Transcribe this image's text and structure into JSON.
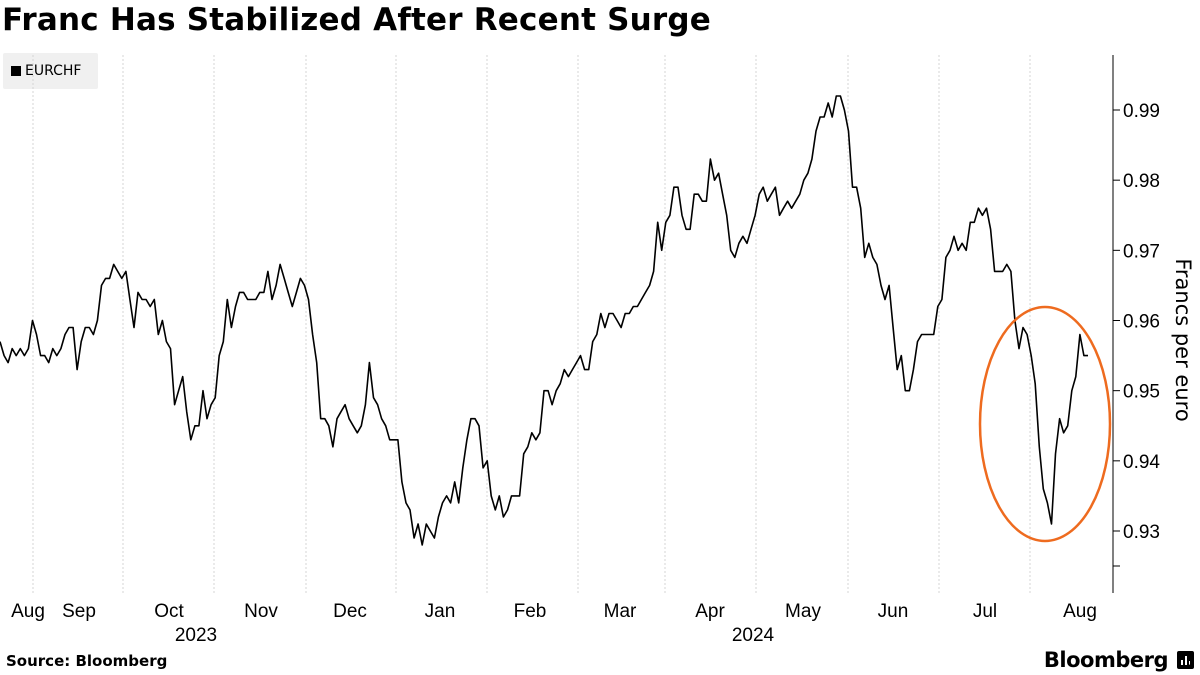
{
  "title": "Franc Has Stabilized After Recent Surge",
  "source": "Source: Bloomberg",
  "brand": "Bloomberg",
  "chart_data": {
    "type": "line",
    "ylabel": "Francs per euro",
    "ylim": [
      0.9225,
      0.9985
    ],
    "yticks": [
      "0.93",
      "0.94",
      "0.95",
      "0.96",
      "0.97",
      "0.98",
      "0.99"
    ],
    "ytick_values": [
      0.93,
      0.94,
      0.95,
      0.96,
      0.97,
      0.98,
      0.99
    ],
    "month_labels": [
      "Aug",
      "Sep",
      "Oct",
      "Nov",
      "Dec",
      "Jan",
      "Feb",
      "Mar",
      "Apr",
      "May",
      "Jun",
      "Jul",
      "Aug"
    ],
    "year_labels": [
      "2023",
      "2024"
    ],
    "grid": "vertical",
    "legend": "top-left",
    "line_color": "#000000",
    "highlight_color": "#ee6b1f",
    "series": [
      {
        "name": "EURCHF",
        "values": [
          0.957,
          0.955,
          0.954,
          0.956,
          0.955,
          0.956,
          0.955,
          0.956,
          0.96,
          0.958,
          0.955,
          0.955,
          0.954,
          0.956,
          0.955,
          0.956,
          0.958,
          0.959,
          0.959,
          0.953,
          0.957,
          0.959,
          0.959,
          0.958,
          0.96,
          0.965,
          0.966,
          0.966,
          0.968,
          0.967,
          0.966,
          0.967,
          0.963,
          0.959,
          0.964,
          0.963,
          0.963,
          0.962,
          0.963,
          0.958,
          0.96,
          0.957,
          0.956,
          0.948,
          0.95,
          0.952,
          0.947,
          0.943,
          0.945,
          0.945,
          0.95,
          0.946,
          0.948,
          0.949,
          0.955,
          0.957,
          0.963,
          0.959,
          0.962,
          0.964,
          0.964,
          0.963,
          0.963,
          0.963,
          0.964,
          0.964,
          0.967,
          0.963,
          0.965,
          0.968,
          0.966,
          0.964,
          0.962,
          0.964,
          0.966,
          0.965,
          0.963,
          0.958,
          0.954,
          0.946,
          0.946,
          0.945,
          0.942,
          0.946,
          0.947,
          0.948,
          0.946,
          0.945,
          0.944,
          0.945,
          0.948,
          0.954,
          0.949,
          0.948,
          0.946,
          0.945,
          0.943,
          0.943,
          0.943,
          0.937,
          0.934,
          0.933,
          0.929,
          0.931,
          0.928,
          0.931,
          0.93,
          0.929,
          0.932,
          0.934,
          0.935,
          0.934,
          0.937,
          0.934,
          0.939,
          0.943,
          0.946,
          0.946,
          0.945,
          0.939,
          0.94,
          0.935,
          0.933,
          0.935,
          0.932,
          0.933,
          0.935,
          0.935,
          0.935,
          0.941,
          0.942,
          0.944,
          0.943,
          0.944,
          0.95,
          0.95,
          0.948,
          0.95,
          0.951,
          0.953,
          0.952,
          0.953,
          0.954,
          0.955,
          0.953,
          0.953,
          0.957,
          0.958,
          0.961,
          0.959,
          0.961,
          0.961,
          0.96,
          0.959,
          0.961,
          0.961,
          0.962,
          0.962,
          0.963,
          0.964,
          0.965,
          0.967,
          0.974,
          0.97,
          0.974,
          0.975,
          0.979,
          0.979,
          0.975,
          0.973,
          0.973,
          0.978,
          0.978,
          0.977,
          0.977,
          0.983,
          0.98,
          0.981,
          0.978,
          0.975,
          0.97,
          0.969,
          0.971,
          0.972,
          0.971,
          0.973,
          0.975,
          0.978,
          0.979,
          0.977,
          0.978,
          0.979,
          0.975,
          0.976,
          0.977,
          0.976,
          0.977,
          0.978,
          0.98,
          0.981,
          0.983,
          0.987,
          0.989,
          0.989,
          0.991,
          0.989,
          0.992,
          0.992,
          0.99,
          0.987,
          0.979,
          0.979,
          0.976,
          0.969,
          0.971,
          0.969,
          0.968,
          0.965,
          0.963,
          0.965,
          0.959,
          0.953,
          0.955,
          0.95,
          0.95,
          0.953,
          0.957,
          0.958,
          0.958,
          0.958,
          0.958,
          0.962,
          0.963,
          0.969,
          0.97,
          0.972,
          0.97,
          0.971,
          0.97,
          0.974,
          0.974,
          0.976,
          0.975,
          0.976,
          0.973,
          0.967,
          0.967,
          0.967,
          0.968,
          0.967,
          0.96,
          0.956,
          0.959,
          0.958,
          0.955,
          0.951,
          0.942,
          0.936,
          0.934,
          0.931,
          0.941,
          0.946,
          0.944,
          0.945,
          0.95,
          0.952,
          0.958,
          0.955,
          0.955
        ]
      }
    ],
    "annotation": "circle"
  }
}
